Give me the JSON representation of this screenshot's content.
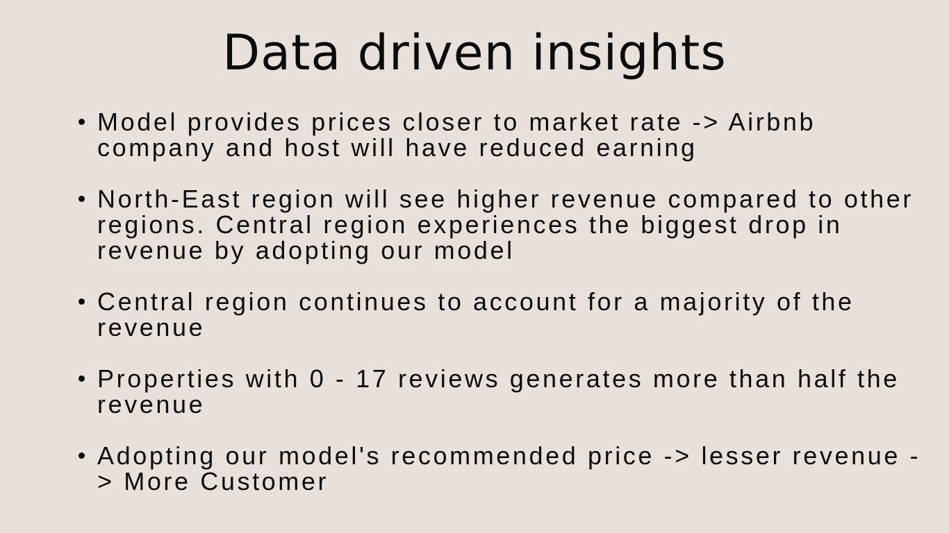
{
  "slide": {
    "title": "Data driven insights",
    "bullets": [
      "Model provides prices closer to market rate -> Airbnb company and host will have reduced earning",
      "North-East region will see higher revenue compared to other regions. Central region experiences the biggest drop in revenue by adopting our model",
      "Central region continues to account for a majority of the revenue",
      "Properties with 0 - 17 reviews generates more than half the revenue",
      "Adopting our model's recommended price -> lesser revenue -> More Customer"
    ]
  }
}
